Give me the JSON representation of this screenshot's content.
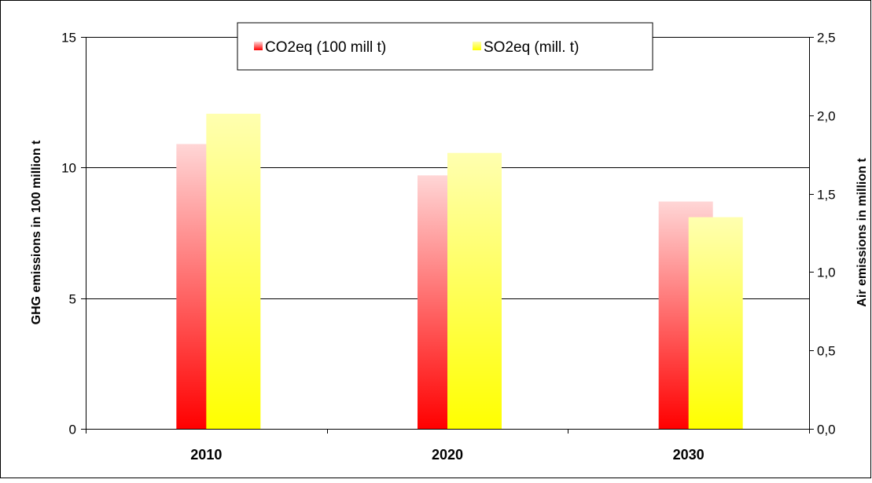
{
  "chart_data": {
    "type": "bar",
    "categories": [
      "2010",
      "2020",
      "2030"
    ],
    "series": [
      {
        "name": "CO2eq (100 mill t)",
        "axis": "left",
        "values": [
          10.9,
          9.7,
          8.7
        ],
        "color_top": "#ffd6d6",
        "color_bottom": "#ff0000"
      },
      {
        "name": "SO2eq (mill. t)",
        "axis": "right",
        "values": [
          2.01,
          1.76,
          1.35
        ],
        "color_top": "#ffffb0",
        "color_bottom": "#ffff00"
      }
    ],
    "left_axis": {
      "label": "GHG emissions in 100 million t",
      "ylim": [
        0,
        15
      ],
      "ticks": [
        "0",
        "5",
        "10",
        "15"
      ]
    },
    "right_axis": {
      "label": "Air emissions in million t",
      "ylim": [
        0,
        2.5
      ],
      "ticks": [
        "0,0",
        "0,5",
        "1,0",
        "1,5",
        "2,0",
        "2,5"
      ]
    },
    "grid": true,
    "legend_position": "top-center"
  }
}
